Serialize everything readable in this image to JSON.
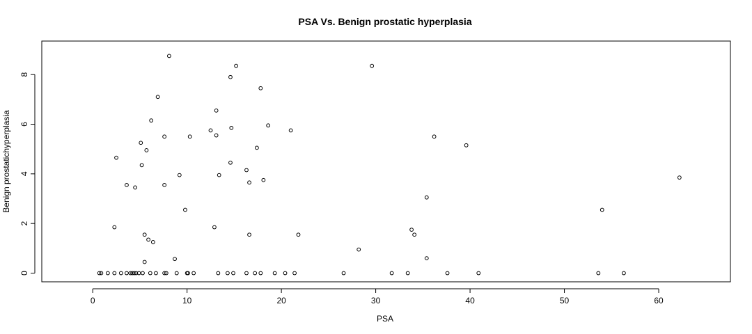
{
  "chart_data": {
    "type": "scatter",
    "title": "PSA Vs. Benign prostatic hyperplasia",
    "xlabel": "PSA",
    "ylabel": "Benign prostatichyperplasia",
    "xlim": [
      -5.4,
      67.6
    ],
    "ylim": [
      -0.35,
      9.35
    ],
    "xticks": [
      0,
      10,
      20,
      30,
      40,
      50,
      60
    ],
    "yticks": [
      0,
      2,
      4,
      6,
      8
    ],
    "grid": false,
    "marker": "open-circle",
    "points": [
      [
        0.7,
        0
      ],
      [
        0.9,
        0
      ],
      [
        1.6,
        0
      ],
      [
        2.3,
        0
      ],
      [
        3.0,
        0
      ],
      [
        3.6,
        0
      ],
      [
        4.0,
        0
      ],
      [
        4.2,
        0
      ],
      [
        4.4,
        0
      ],
      [
        4.6,
        0
      ],
      [
        4.9,
        0
      ],
      [
        5.3,
        0
      ],
      [
        6.1,
        0
      ],
      [
        6.7,
        0
      ],
      [
        7.6,
        0
      ],
      [
        7.8,
        0
      ],
      [
        8.9,
        0
      ],
      [
        10.0,
        0
      ],
      [
        10.1,
        0
      ],
      [
        10.7,
        0
      ],
      [
        13.3,
        0
      ],
      [
        14.3,
        0
      ],
      [
        14.9,
        0
      ],
      [
        16.3,
        0
      ],
      [
        17.2,
        0
      ],
      [
        17.8,
        0
      ],
      [
        19.3,
        0
      ],
      [
        20.4,
        0
      ],
      [
        21.4,
        0
      ],
      [
        26.6,
        0
      ],
      [
        31.7,
        0
      ],
      [
        33.4,
        0
      ],
      [
        37.6,
        0
      ],
      [
        40.9,
        0
      ],
      [
        53.6,
        0
      ],
      [
        56.3,
        0
      ],
      [
        5.5,
        0.45
      ],
      [
        8.7,
        0.57
      ],
      [
        28.2,
        0.95
      ],
      [
        35.4,
        0.6
      ],
      [
        2.3,
        1.85
      ],
      [
        5.5,
        1.55
      ],
      [
        5.9,
        1.35
      ],
      [
        6.4,
        1.25
      ],
      [
        12.9,
        1.85
      ],
      [
        16.6,
        1.55
      ],
      [
        21.8,
        1.55
      ],
      [
        33.8,
        1.75
      ],
      [
        34.1,
        1.55
      ],
      [
        9.8,
        2.55
      ],
      [
        35.4,
        3.05
      ],
      [
        54.0,
        2.55
      ],
      [
        3.6,
        3.55
      ],
      [
        4.5,
        3.45
      ],
      [
        7.6,
        3.55
      ],
      [
        9.2,
        3.95
      ],
      [
        13.4,
        3.95
      ],
      [
        16.3,
        4.15
      ],
      [
        16.6,
        3.65
      ],
      [
        18.1,
        3.75
      ],
      [
        62.2,
        3.85
      ],
      [
        2.5,
        4.65
      ],
      [
        5.2,
        4.35
      ],
      [
        14.6,
        4.45
      ],
      [
        5.1,
        5.25
      ],
      [
        5.7,
        4.95
      ],
      [
        7.6,
        5.5
      ],
      [
        10.3,
        5.5
      ],
      [
        13.1,
        5.55
      ],
      [
        17.4,
        5.05
      ],
      [
        36.2,
        5.5
      ],
      [
        39.6,
        5.15
      ],
      [
        6.2,
        6.15
      ],
      [
        12.5,
        5.75
      ],
      [
        13.1,
        6.55
      ],
      [
        14.7,
        5.85
      ],
      [
        18.6,
        5.95
      ],
      [
        21.0,
        5.75
      ],
      [
        6.9,
        7.1
      ],
      [
        14.6,
        7.9
      ],
      [
        17.8,
        7.45
      ],
      [
        8.1,
        8.75
      ],
      [
        15.2,
        8.35
      ],
      [
        29.6,
        8.35
      ]
    ]
  }
}
